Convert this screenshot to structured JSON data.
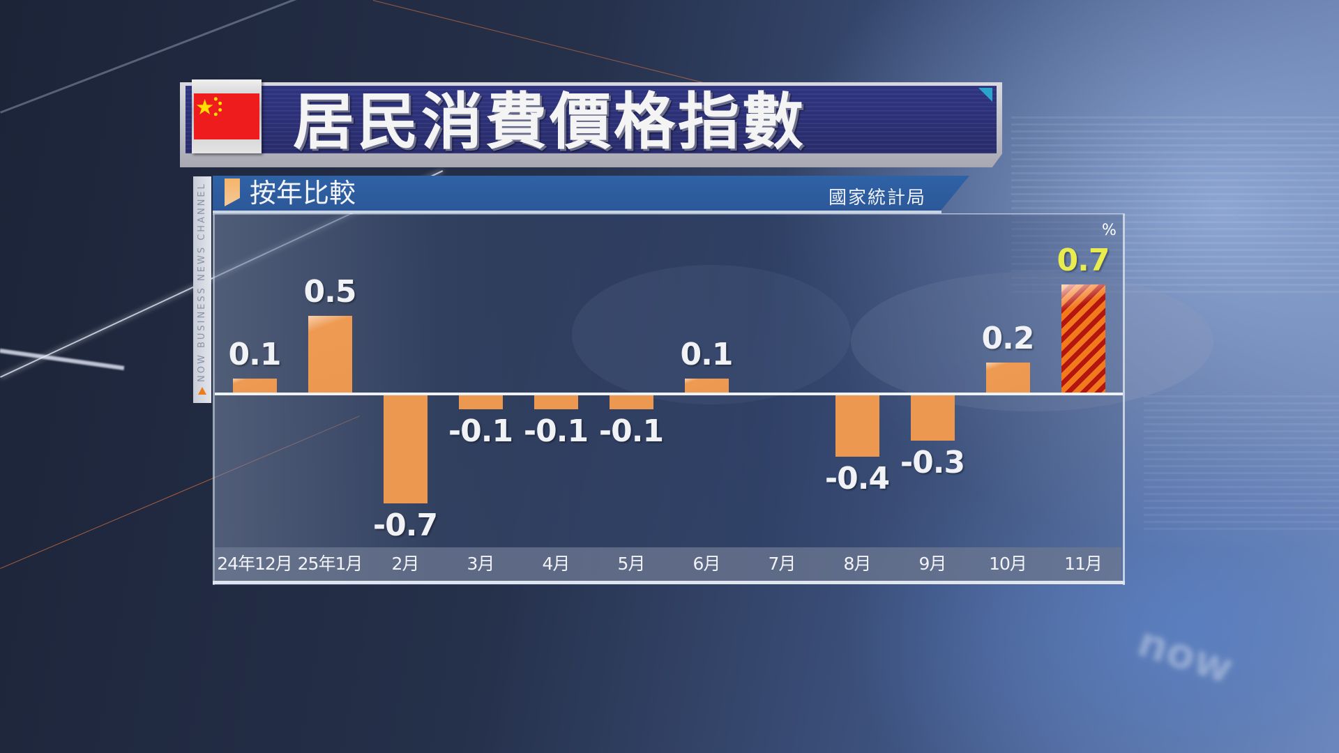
{
  "header": {
    "title": "居民消費價格指數",
    "flag": "china-flag",
    "subtitle": "按年比較",
    "source": "國家統計局",
    "channel_strip": "NOW BUSINESS NEWS CHANNEL"
  },
  "chart": {
    "unit": "%",
    "colors": {
      "bar": "#ec9850",
      "highlight_stripe_a": "#f27a1c",
      "highlight_stripe_b": "#b3150f",
      "highlight_label": "#e9ec4f",
      "label": "#f1f2f5"
    },
    "bars": [
      {
        "month": "24年12月",
        "value": 0.1,
        "label": "0.1"
      },
      {
        "month": "25年1月",
        "value": 0.5,
        "label": "0.5"
      },
      {
        "month": "2月",
        "value": -0.7,
        "label": "-0.7"
      },
      {
        "month": "3月",
        "value": -0.1,
        "label": "-0.1"
      },
      {
        "month": "4月",
        "value": -0.1,
        "label": "-0.1"
      },
      {
        "month": "5月",
        "value": -0.1,
        "label": "-0.1"
      },
      {
        "month": "6月",
        "value": 0.1,
        "label": "0.1"
      },
      {
        "month": "7月",
        "value": 0,
        "label": ""
      },
      {
        "month": "8月",
        "value": -0.4,
        "label": "-0.4"
      },
      {
        "month": "9月",
        "value": -0.3,
        "label": "-0.3"
      },
      {
        "month": "10月",
        "value": 0.2,
        "label": "0.2"
      },
      {
        "month": "11月",
        "value": 0.7,
        "label": "0.7",
        "highlight": true
      }
    ]
  },
  "chart_data": {
    "type": "bar",
    "title": "居民消費價格指數",
    "subtitle": "按年比較",
    "source": "國家統計局",
    "xlabel": "",
    "ylabel": "%",
    "categories": [
      "24年12月",
      "25年1月",
      "2月",
      "3月",
      "4月",
      "5月",
      "6月",
      "7月",
      "8月",
      "9月",
      "10月",
      "11月"
    ],
    "values": [
      0.1,
      0.5,
      -0.7,
      -0.1,
      -0.1,
      -0.1,
      0.1,
      0,
      -0.4,
      -0.3,
      0.2,
      0.7
    ],
    "highlighted_category": "11月",
    "ylim": [
      -0.8,
      0.8
    ],
    "grid": false,
    "legend": null,
    "data_labels": true
  }
}
